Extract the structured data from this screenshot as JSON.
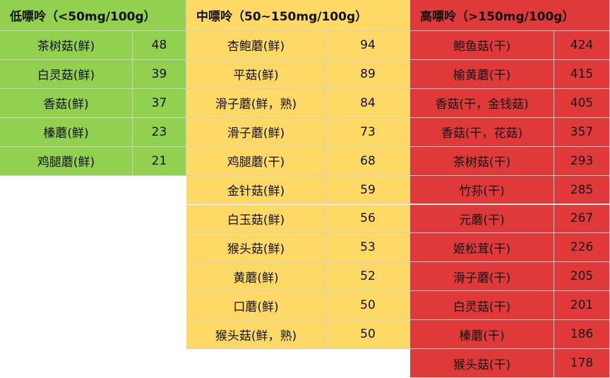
{
  "groups": [
    {
      "title": "低嘌呤（<50mg/100g）",
      "rows": [
        [
          "茶树菇(鲜)",
          48
        ],
        [
          "白灵菇(鲜)",
          39
        ],
        [
          "香菇(鲜)",
          37
        ],
        [
          "榛蘑(鲜)",
          23
        ],
        [
          "鸡腿蘑(鲜)",
          21
        ]
      ]
    },
    {
      "title": "中嘌呤（50~150mg/100g）",
      "rows": [
        [
          "杏鲍蘑(鲜)",
          94
        ],
        [
          "平菇(鲜)",
          89
        ],
        [
          "滑子蘑(鲜，熟)",
          84
        ],
        [
          "滑子蘑(鲜)",
          73
        ],
        [
          "鸡腿蘑(干)",
          68
        ],
        [
          "金针菇(鲜)",
          59
        ],
        [
          "白玉菇(鲜)",
          56
        ],
        [
          "猴头菇(鲜)",
          53
        ],
        [
          "黄蘑(鲜)",
          52
        ],
        [
          "口蘑(鲜)",
          50
        ],
        [
          "猴头菇(鲜，熟)",
          50
        ]
      ]
    },
    {
      "title": "高嘌呤（>150mg/100g）",
      "rows": [
        [
          "鲍鱼菇(干)",
          424
        ],
        [
          "榆黄蘑(干)",
          415
        ],
        [
          "香菇(干，金钱菇)",
          405
        ],
        [
          "香菇(干，花菇)",
          357
        ],
        [
          "茶树菇(干)",
          293
        ],
        [
          "竹荪(干)",
          285
        ],
        [
          "元蘑(干)",
          267
        ],
        [
          "姬松茸(干)",
          226
        ],
        [
          "滑子蘑(干)",
          205
        ],
        [
          "白灵菇(干)",
          201
        ],
        [
          "榛蘑(干)",
          186
        ],
        [
          "猴头菇(干)",
          178
        ]
      ]
    }
  ]
}
